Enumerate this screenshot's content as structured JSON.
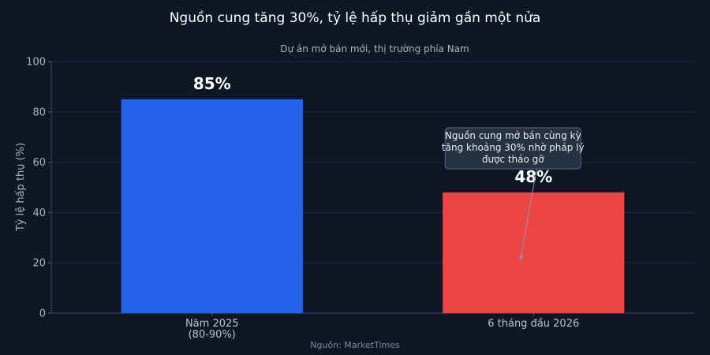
{
  "chart_data": {
    "type": "bar",
    "title": "Nguồn cung tăng 30%, tỷ lệ hấp thụ giảm gần một nửa",
    "subtitle": "Dự án mở bán mới, thị trường phía Nam",
    "ylabel": "Tỷ lệ hấp thụ (%)",
    "xlabel": "",
    "ylim": [
      0,
      100
    ],
    "yticks": [
      0,
      20,
      40,
      60,
      80,
      100
    ],
    "grid": true,
    "categories": [
      [
        "Năm 2025",
        "(80-90%)"
      ],
      [
        "6 tháng đầu 2026"
      ]
    ],
    "values": [
      85,
      48
    ],
    "value_labels": [
      "85%",
      "48%"
    ],
    "colors": [
      "#2563eb",
      "#ef4444"
    ],
    "annotation": {
      "lines": [
        "Nguồn cung mở bán cùng kỳ",
        "tăng khoảng 30% nhờ pháp lý",
        "được tháo gỡ"
      ],
      "target_category": 1,
      "target_value": 21
    },
    "source": "Nguồn: MarketTimes"
  }
}
